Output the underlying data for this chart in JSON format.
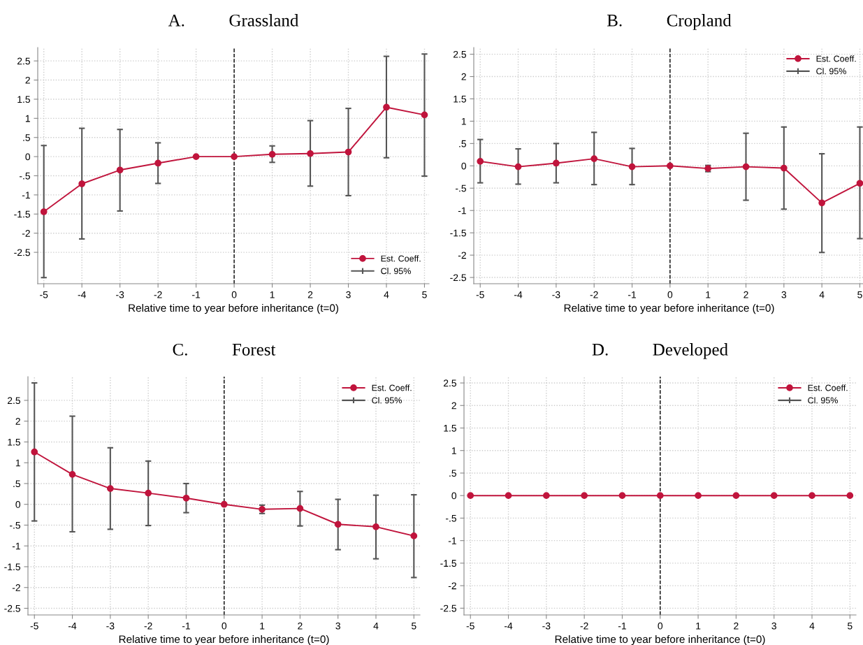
{
  "chart_data": [
    {
      "type": "line",
      "title": "A.          Grassland",
      "xlabel": "Relative time to year before inheritance (t=0)",
      "x": [
        -5,
        -4,
        -3,
        -2,
        -1,
        0,
        1,
        2,
        3,
        4,
        5
      ],
      "series": [
        {
          "name": "Est. Coeff.",
          "color": "#c0143c",
          "values": [
            -1.44,
            -0.71,
            -0.35,
            -0.17,
            0,
            0,
            0.06,
            0.08,
            0.12,
            1.29,
            1.09
          ],
          "errors": [
            [
              -3.16,
              0.29
            ],
            [
              -2.15,
              0.74
            ],
            [
              -1.42,
              0.71
            ],
            [
              -0.7,
              0.36
            ],
            null,
            null,
            [
              -0.15,
              0.28
            ],
            [
              -0.77,
              0.94
            ],
            [
              -1.02,
              1.26
            ],
            [
              -0.03,
              2.62
            ],
            [
              -0.51,
              2.68
            ]
          ]
        },
        {
          "name": "Cl. 95%",
          "color": "#555555",
          "values": [
            null,
            null,
            null,
            null,
            null,
            null,
            null,
            null,
            null,
            null,
            null
          ]
        }
      ],
      "xlim": [
        -5.16,
        5.12
      ],
      "ylim": [
        -3.32,
        2.85
      ],
      "xticks": [
        -5,
        -4,
        -3,
        -2,
        -1,
        0,
        1,
        2,
        3,
        4,
        5
      ],
      "yticks": [
        {
          "value": -2.5,
          "label": "-2.5"
        },
        -2,
        {
          "value": -1.5,
          "label": "-1.5"
        },
        -1,
        {
          "value": -0.5,
          "label": "-.5"
        },
        0,
        {
          "value": 0.5,
          "label": ".5"
        },
        1,
        1.5,
        2,
        2.5
      ],
      "ref_lines": [
        {
          "axis": "x",
          "value": 0,
          "color": "#000000",
          "line_style": "dashed"
        }
      ],
      "grid": true,
      "legend": "bottom right",
      "marker": "circle",
      "line_style": "solid"
    },
    {
      "type": "line",
      "title": "B.          Cropland",
      "xlabel": "Relative time to year before inheritance (t=0)",
      "x": [
        -5,
        -4,
        -3,
        -2,
        -1,
        0,
        1,
        2,
        3,
        4,
        5
      ],
      "series": [
        {
          "name": "Est. Coeff.",
          "color": "#c0143c",
          "values": [
            0.1,
            -0.02,
            0.06,
            0.16,
            -0.02,
            0,
            -0.06,
            -0.02,
            -0.05,
            -0.83,
            -0.39
          ],
          "errors": [
            [
              -0.38,
              0.59
            ],
            [
              -0.41,
              0.38
            ],
            [
              -0.38,
              0.5
            ],
            [
              -0.42,
              0.75
            ],
            [
              -0.42,
              0.39
            ],
            null,
            [
              -0.13,
              0.01
            ],
            [
              -0.77,
              0.73
            ],
            [
              -0.97,
              0.87
            ],
            [
              -1.94,
              0.27
            ],
            [
              -1.63,
              0.87
            ]
          ]
        },
        {
          "name": "Cl. 95%",
          "color": "#555555",
          "values": [
            null,
            null,
            null,
            null,
            null,
            null,
            null,
            null,
            null,
            null,
            null
          ]
        }
      ],
      "xlim": [
        -5.17,
        5.12
      ],
      "ylim": [
        -2.64,
        2.65
      ],
      "xticks": [
        -5,
        -4,
        -3,
        -2,
        -1,
        0,
        1,
        2,
        3,
        4,
        5
      ],
      "yticks": [
        {
          "value": -2.5,
          "label": "-2.5"
        },
        -2,
        {
          "value": -1.5,
          "label": "-1.5"
        },
        -1,
        {
          "value": -0.5,
          "label": "-.5"
        },
        0,
        {
          "value": 0.5,
          "label": ".5"
        },
        1,
        1.5,
        2,
        2.5
      ],
      "ref_lines": [
        {
          "axis": "x",
          "value": 0,
          "color": "#000000",
          "line_style": "dashed"
        }
      ],
      "grid": true,
      "legend": "top right",
      "marker": "circle",
      "line_style": "solid"
    },
    {
      "type": "line",
      "title": "C.          Forest",
      "xlabel": "Relative time to year before inheritance (t=0)",
      "x": [
        -5,
        -4,
        -3,
        -2,
        -1,
        0,
        1,
        2,
        3,
        4,
        5
      ],
      "series": [
        {
          "name": "Est. Coeff.",
          "color": "#c0143c",
          "values": [
            1.26,
            0.72,
            0.38,
            0.27,
            0.15,
            0,
            -0.12,
            -0.1,
            -0.48,
            -0.54,
            -0.76
          ],
          "errors": [
            [
              -0.4,
              2.92
            ],
            [
              -0.66,
              2.12
            ],
            [
              -0.6,
              1.36
            ],
            [
              -0.51,
              1.04
            ],
            [
              -0.2,
              0.5
            ],
            null,
            [
              -0.22,
              -0.02
            ],
            [
              -0.52,
              0.31
            ],
            [
              -1.09,
              0.12
            ],
            [
              -1.31,
              0.22
            ],
            [
              -1.76,
              0.23
            ]
          ]
        },
        {
          "name": "Cl. 95%",
          "color": "#555555",
          "values": [
            null,
            null,
            null,
            null,
            null,
            null,
            null,
            null,
            null,
            null,
            null
          ]
        }
      ],
      "xlim": [
        -5.17,
        5.16
      ],
      "ylim": [
        -2.66,
        3.07
      ],
      "xticks": [
        -5,
        -4,
        -3,
        -2,
        -1,
        0,
        1,
        2,
        3,
        4,
        5
      ],
      "yticks": [
        {
          "value": -2.5,
          "label": "-2.5"
        },
        -2,
        {
          "value": -1.5,
          "label": "-1.5"
        },
        -1,
        {
          "value": -0.5,
          "label": "-.5"
        },
        0,
        {
          "value": 0.5,
          "label": ".5"
        },
        1,
        1.5,
        2,
        2.5
      ],
      "ref_lines": [
        {
          "axis": "x",
          "value": 0,
          "color": "#000000",
          "line_style": "dashed"
        }
      ],
      "grid": true,
      "legend": "top right",
      "marker": "circle",
      "line_style": "solid"
    },
    {
      "type": "line",
      "title": "D.          Developed",
      "xlabel": "Relative time to year before inheritance (t=0)",
      "x": [
        -5,
        -4,
        -3,
        -2,
        -1,
        0,
        1,
        2,
        3,
        4,
        5
      ],
      "series": [
        {
          "name": "Est. Coeff.",
          "color": "#c0143c",
          "values": [
            0,
            0,
            0,
            0,
            0,
            0,
            0,
            0,
            0,
            0,
            0
          ]
        },
        {
          "name": "Cl. 95%",
          "color": "#555555",
          "values": [
            null,
            null,
            null,
            null,
            null,
            null,
            null,
            null,
            null,
            null,
            null
          ]
        }
      ],
      "xlim": [
        -5.17,
        5.16
      ],
      "ylim": [
        -2.65,
        2.64
      ],
      "xticks": [
        -5,
        -4,
        -3,
        -2,
        -1,
        0,
        1,
        2,
        3,
        4,
        5
      ],
      "yticks": [
        {
          "value": -2.5,
          "label": "-2.5"
        },
        -2,
        {
          "value": -1.5,
          "label": "-1.5"
        },
        -1,
        {
          "value": -0.5,
          "label": "-.5"
        },
        0,
        {
          "value": 0.5,
          "label": ".5"
        },
        1,
        1.5,
        2,
        2.5
      ],
      "ref_lines": [
        {
          "axis": "x",
          "value": 0,
          "color": "#000000",
          "line_style": "dashed"
        }
      ],
      "grid": true,
      "legend": "top right",
      "marker": "circle",
      "line_style": "solid"
    }
  ]
}
